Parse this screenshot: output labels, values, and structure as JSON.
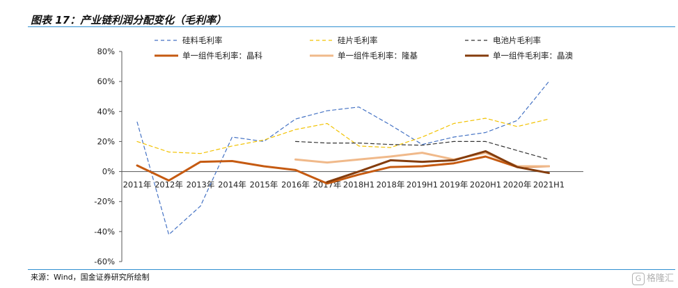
{
  "header": {
    "title": "图表 17：产业链利润分配变化（毛利率）"
  },
  "footer": {
    "source": "来源：Wind，国金证券研究所绘制"
  },
  "watermark": {
    "icon": "G",
    "text": "格隆汇"
  },
  "chart_data": {
    "type": "line",
    "categories": [
      "2011年",
      "2012年",
      "2013年",
      "2014年",
      "2015年",
      "2016年",
      "2017年",
      "2018H1",
      "2018年",
      "2019H1",
      "2019年",
      "2020H1",
      "2020年",
      "2021H1"
    ],
    "ylim": [
      -60,
      80
    ],
    "yticks": [
      -60,
      -40,
      -20,
      0,
      20,
      40,
      60,
      80
    ],
    "ytick_labels": [
      "-60%",
      "-40%",
      "-20%",
      "0%",
      "20%",
      "40%",
      "60%",
      "80%"
    ],
    "grid": false,
    "legend_position": "top",
    "series": [
      {
        "name": "硅料毛利率",
        "style": "dashed",
        "color": "#4472c4",
        "width": 1.2,
        "values": [
          33,
          -42,
          -23,
          23,
          20,
          35,
          40.5,
          43,
          31,
          18,
          23,
          26,
          34,
          60
        ]
      },
      {
        "name": "硅片毛利率",
        "style": "dashed",
        "color": "#f2c200",
        "width": 1.2,
        "values": [
          20,
          13,
          12,
          17,
          21,
          28,
          32,
          17,
          16,
          23,
          32,
          35.5,
          30,
          35
        ]
      },
      {
        "name": "电池片毛利率",
        "style": "dashed",
        "color": "#333333",
        "width": 1.2,
        "values": [
          null,
          null,
          null,
          null,
          null,
          20,
          19,
          19,
          18,
          17.5,
          20,
          20,
          14,
          8
        ]
      },
      {
        "name": "单一组件毛利率：晶科",
        "style": "solid",
        "color": "#c55a11",
        "width": 3,
        "values": [
          4,
          -6,
          6.5,
          7,
          3.5,
          1,
          -8,
          -2,
          3,
          3.5,
          5.5,
          10,
          3,
          3.5
        ]
      },
      {
        "name": "单一组件毛利率：隆基",
        "style": "solid",
        "color": "#f0b98a",
        "width": 3,
        "values": [
          null,
          null,
          null,
          null,
          null,
          8,
          6,
          8,
          10,
          12.5,
          8,
          12.5,
          3.5,
          3.5
        ]
      },
      {
        "name": "单一组件毛利率：晶澳",
        "style": "solid",
        "color": "#843c0c",
        "width": 3,
        "values": [
          null,
          null,
          null,
          null,
          null,
          null,
          -7,
          0,
          7.5,
          6.5,
          7.5,
          13.5,
          3,
          -1
        ]
      }
    ]
  }
}
